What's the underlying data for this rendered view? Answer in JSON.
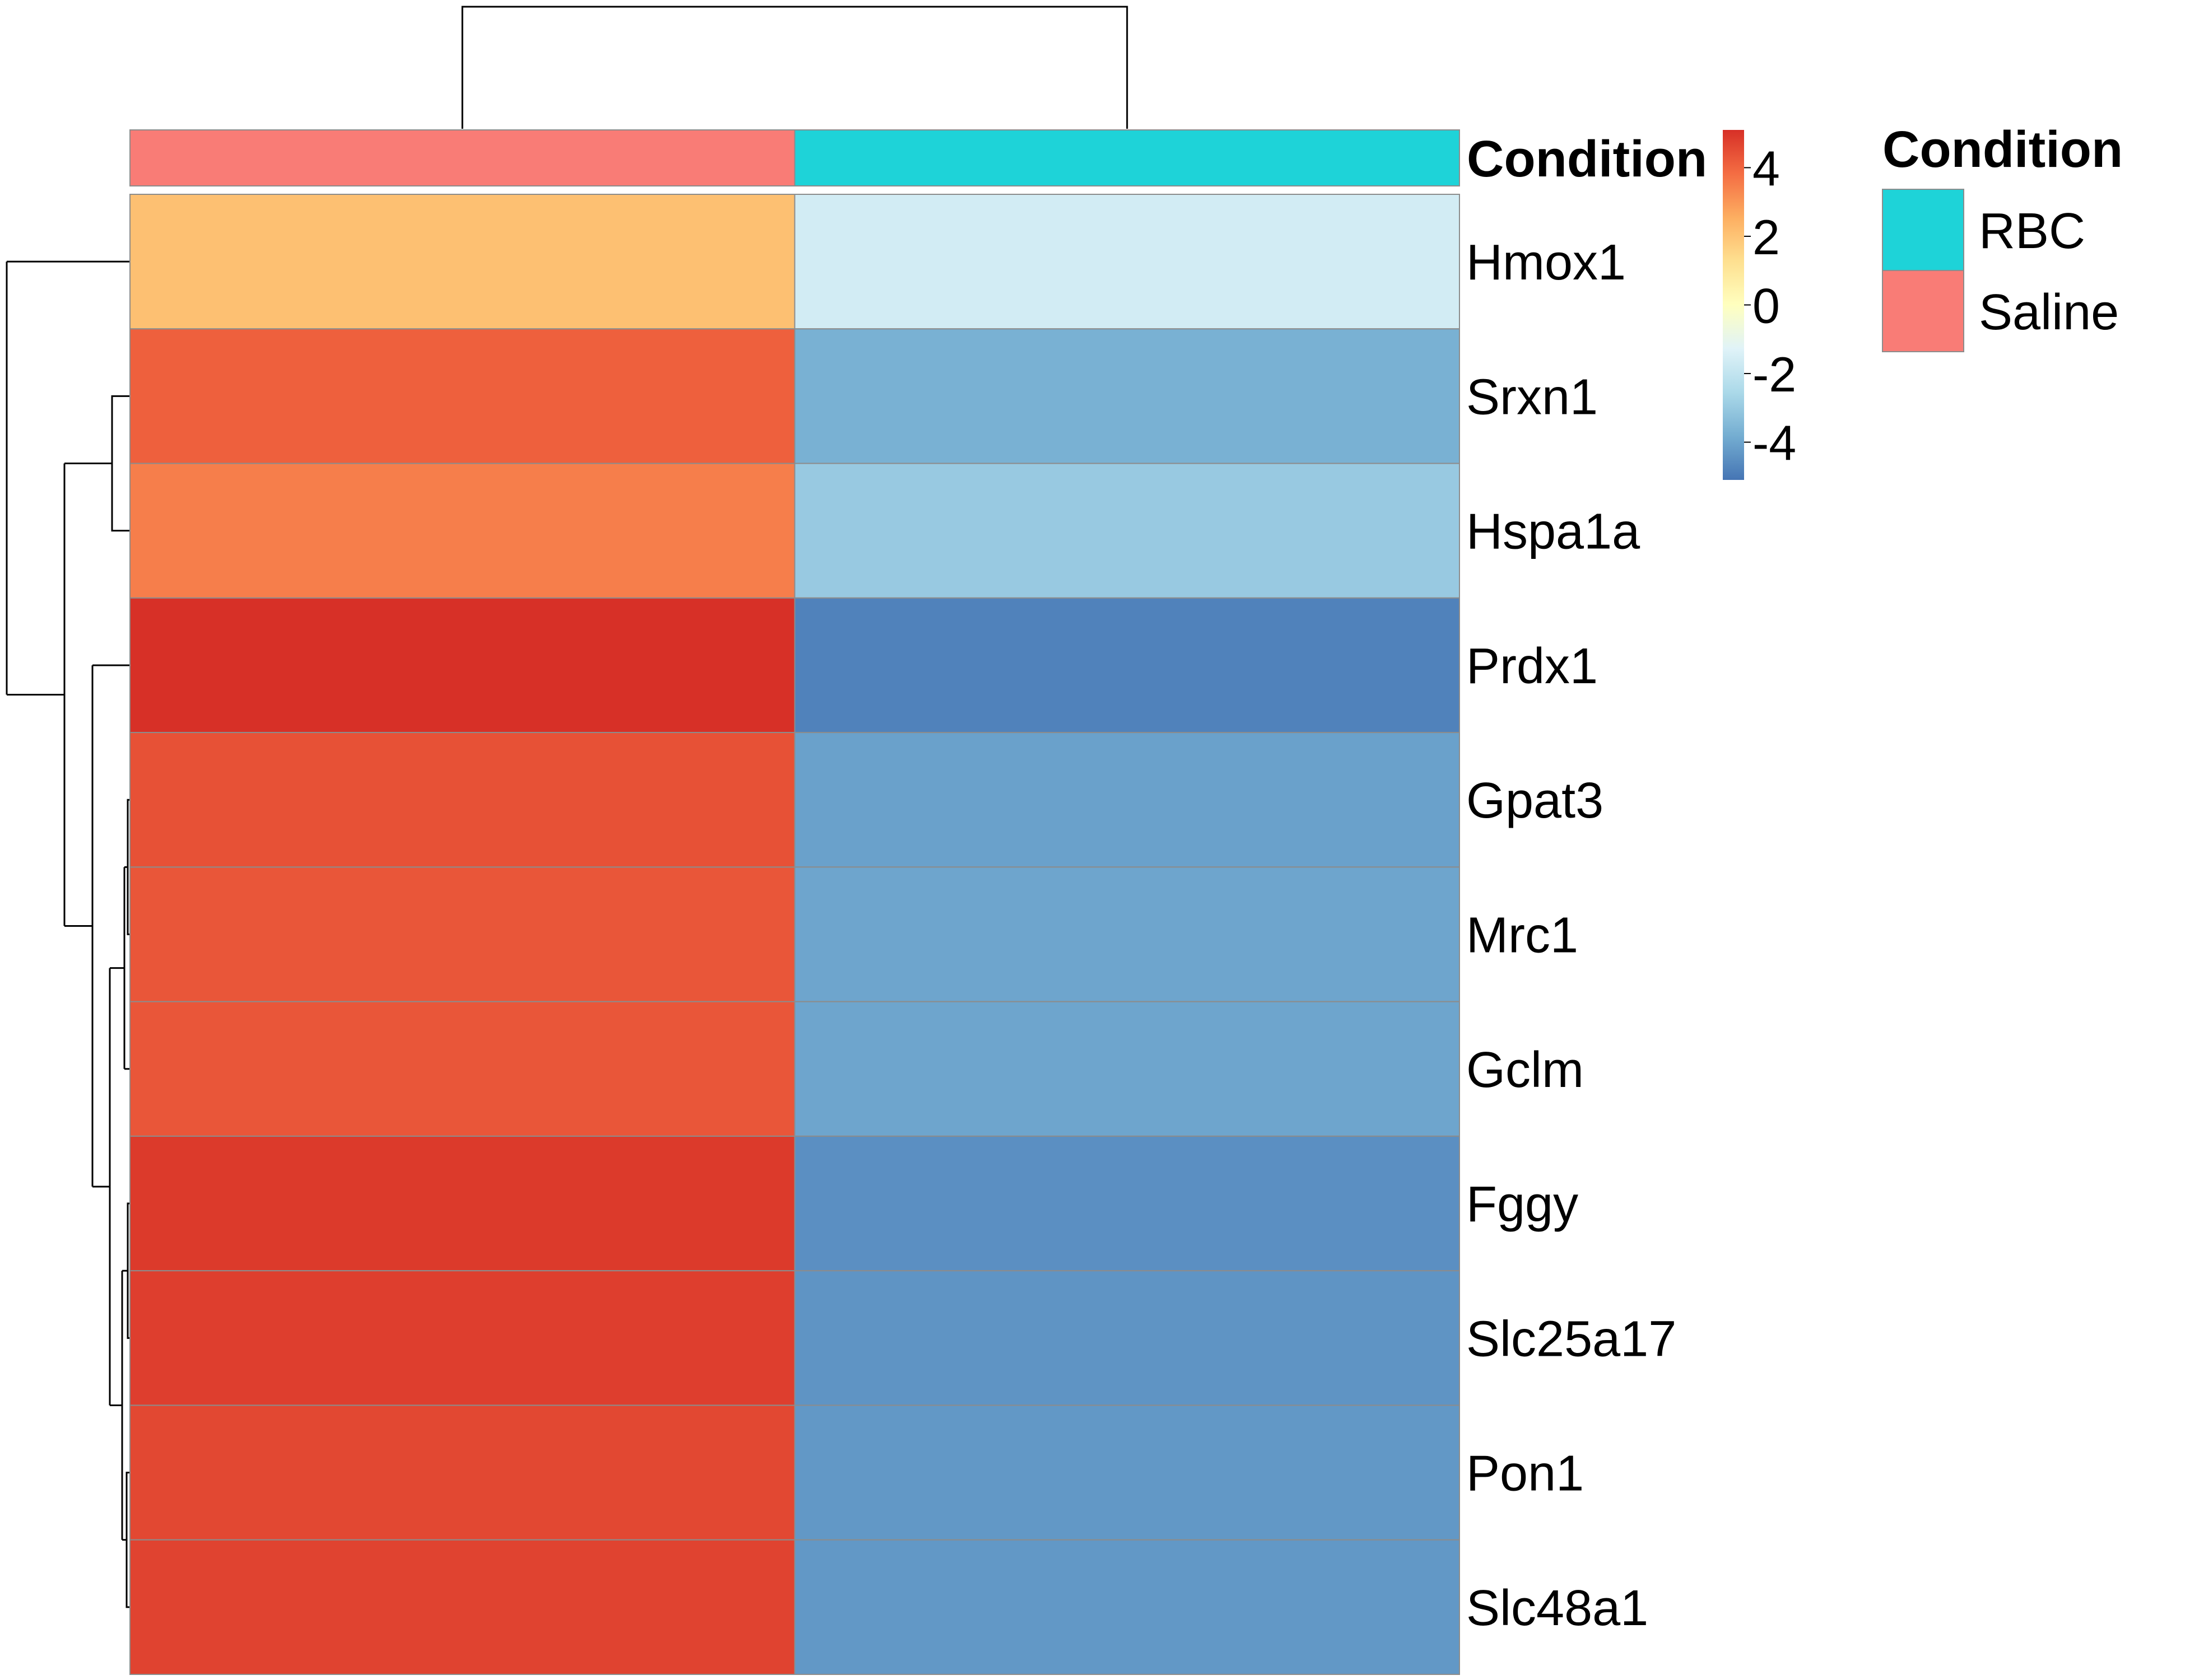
{
  "chart_data": {
    "type": "heatmap",
    "columns": [
      "Saline",
      "RBC"
    ],
    "rows": [
      "Hmox1",
      "Srxn1",
      "Hspa1a",
      "Prdx1",
      "Gpat3",
      "Mrc1",
      "Gclm",
      "Fggy",
      "Slc25a17",
      "Pon1",
      "Slc48a1"
    ],
    "values": [
      [
        2.1,
        -1.6
      ],
      [
        4.1,
        -3.7
      ],
      [
        3.5,
        -3.0
      ],
      [
        5.3,
        -4.8
      ],
      [
        4.4,
        -4.1
      ],
      [
        4.3,
        -4.0
      ],
      [
        4.3,
        -4.0
      ],
      [
        4.9,
        -4.5
      ],
      [
        4.8,
        -4.4
      ],
      [
        4.6,
        -4.3
      ],
      [
        4.7,
        -4.3
      ]
    ],
    "colorbar": {
      "ticks": [
        "4",
        "2",
        "0",
        "-2",
        "-4"
      ],
      "tick_values": [
        4,
        2,
        0,
        -2,
        -4
      ],
      "range": [
        -5.1,
        5.1
      ],
      "colors": [
        "#4575b4",
        "#74add1",
        "#abd9e9",
        "#e0f3f8",
        "#ffffbf",
        "#fee090",
        "#fdae61",
        "#f46d43",
        "#d73027"
      ]
    },
    "annotation": {
      "title": "Condition",
      "column_conditions": [
        "Saline",
        "RBC"
      ]
    },
    "legend": {
      "title": "Condition",
      "items": [
        {
          "label": "RBC",
          "color": "#1ed3d8"
        },
        {
          "label": "Saline",
          "color": "#f97c76"
        }
      ]
    }
  }
}
